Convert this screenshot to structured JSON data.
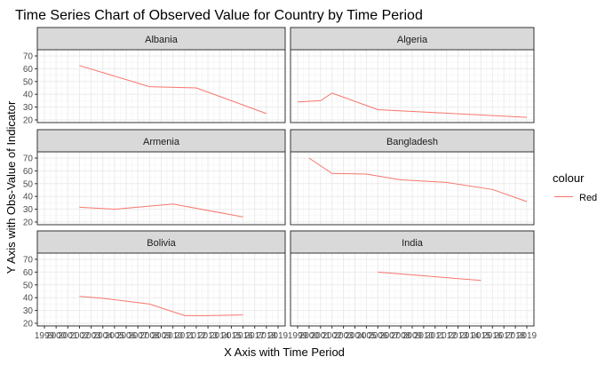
{
  "chart_data": {
    "type": "line",
    "title": "Time Series Chart of Observed Value for Country by Time Period",
    "xlabel": "X Axis with Time Period",
    "ylabel": "Y Axis with Obs-Value of Indicator",
    "xlim": [
      1999,
      2019
    ],
    "ylim": [
      20,
      70
    ],
    "x_ticks": [
      1999,
      2000,
      2001,
      2002,
      2003,
      2004,
      2005,
      2006,
      2007,
      2008,
      2009,
      2010,
      2011,
      2012,
      2013,
      2014,
      2015,
      2016,
      2017,
      2018,
      2019
    ],
    "y_ticks": [
      20,
      30,
      40,
      50,
      60,
      70
    ],
    "grid": true,
    "line_color": "#f8766d",
    "legend": {
      "title": "colour",
      "entries": [
        "Red"
      ],
      "placement": "right"
    },
    "panels": [
      {
        "name": "Albania",
        "x": [
          2002,
          2008,
          2012,
          2018
        ],
        "y": [
          62.5,
          46,
          45,
          24.9
        ]
      },
      {
        "name": "Algeria",
        "x": [
          1999,
          2001,
          2002,
          2006,
          2019
        ],
        "y": [
          34,
          35,
          41,
          28,
          22
        ]
      },
      {
        "name": "Armenia",
        "x": [
          2002,
          2005,
          2010,
          2016
        ],
        "y": [
          31.5,
          30,
          34,
          24
        ]
      },
      {
        "name": "Bangladesh",
        "x": [
          2000,
          2002,
          2005,
          2008,
          2012,
          2016,
          2019
        ],
        "y": [
          70,
          58,
          57.5,
          53,
          51,
          45.5,
          36
        ]
      },
      {
        "name": "Bolivia",
        "x": [
          2002,
          2004,
          2008,
          2011,
          2013,
          2016
        ],
        "y": [
          41,
          39.5,
          35,
          26,
          26,
          26.5
        ]
      },
      {
        "name": "India",
        "x": [
          2006,
          2015
        ],
        "y": [
          60,
          53.5
        ]
      }
    ]
  }
}
